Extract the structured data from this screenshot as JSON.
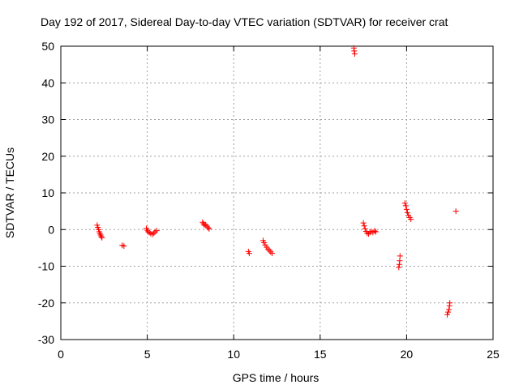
{
  "chart_data": {
    "type": "scatter",
    "title": "Day 192 of 2017, Sidereal Day-to-day VTEC variation (SDTVAR) for receiver crat",
    "xlabel": "GPS time / hours",
    "ylabel": "SDTVAR / TECUs",
    "xlim": [
      0,
      25
    ],
    "ylim": [
      -30,
      50
    ],
    "xticks": [
      0,
      5,
      10,
      15,
      20,
      25
    ],
    "yticks": [
      -30,
      -20,
      -10,
      0,
      10,
      20,
      30,
      40,
      50
    ],
    "grid": true,
    "marker": "+",
    "color": "#ff0000",
    "points": [
      [
        2.1,
        1.2
      ],
      [
        2.14,
        0.6
      ],
      [
        2.18,
        0.0
      ],
      [
        2.22,
        -0.6
      ],
      [
        2.26,
        -1.1
      ],
      [
        2.3,
        -1.5
      ],
      [
        2.34,
        -1.9
      ],
      [
        2.38,
        -2.2
      ],
      [
        3.55,
        -4.3
      ],
      [
        3.65,
        -4.5
      ],
      [
        4.95,
        0.3
      ],
      [
        5.0,
        -0.2
      ],
      [
        5.05,
        -0.6
      ],
      [
        5.12,
        -0.8
      ],
      [
        5.2,
        -1.1
      ],
      [
        5.3,
        -1.3
      ],
      [
        5.38,
        -1.0
      ],
      [
        5.45,
        -0.6
      ],
      [
        5.55,
        -0.3
      ],
      [
        8.2,
        2.0
      ],
      [
        8.25,
        1.6
      ],
      [
        8.3,
        1.2
      ],
      [
        8.38,
        1.3
      ],
      [
        8.45,
        0.9
      ],
      [
        8.52,
        0.5
      ],
      [
        8.58,
        0.2
      ],
      [
        10.85,
        -6.0
      ],
      [
        10.9,
        -6.5
      ],
      [
        11.7,
        -3.0
      ],
      [
        11.76,
        -3.6
      ],
      [
        11.82,
        -4.2
      ],
      [
        11.9,
        -4.8
      ],
      [
        11.98,
        -5.3
      ],
      [
        12.06,
        -5.7
      ],
      [
        12.14,
        -6.1
      ],
      [
        12.22,
        -6.5
      ],
      [
        16.95,
        49.5
      ],
      [
        16.97,
        48.7
      ],
      [
        17.0,
        47.9
      ],
      [
        17.5,
        1.8
      ],
      [
        17.55,
        1.0
      ],
      [
        17.6,
        0.2
      ],
      [
        17.65,
        -0.5
      ],
      [
        17.72,
        -1.0
      ],
      [
        17.8,
        -1.2
      ],
      [
        17.88,
        -0.8
      ],
      [
        17.96,
        -0.5
      ],
      [
        18.05,
        -0.8
      ],
      [
        18.15,
        -0.4
      ],
      [
        18.22,
        -0.6
      ],
      [
        19.55,
        -10.3
      ],
      [
        19.58,
        -9.5
      ],
      [
        19.6,
        -8.5
      ],
      [
        19.62,
        -7.2
      ],
      [
        19.9,
        7.2
      ],
      [
        19.95,
        6.5
      ],
      [
        20.0,
        5.5
      ],
      [
        20.05,
        4.6
      ],
      [
        20.1,
        3.9
      ],
      [
        20.18,
        3.3
      ],
      [
        20.25,
        2.8
      ],
      [
        22.35,
        -23.2
      ],
      [
        22.4,
        -22.5
      ],
      [
        22.45,
        -21.8
      ],
      [
        22.48,
        -20.8
      ],
      [
        22.5,
        -20.0
      ],
      [
        22.85,
        5.0
      ]
    ]
  }
}
